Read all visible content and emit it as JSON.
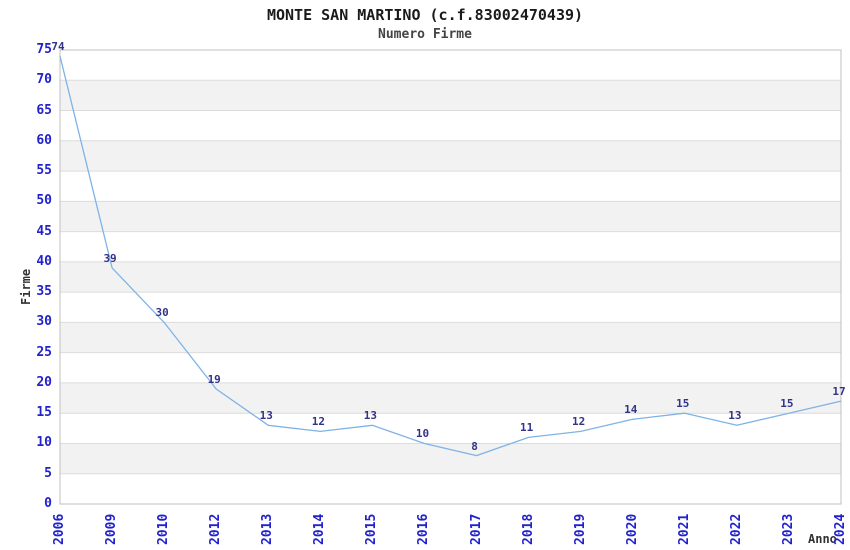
{
  "chart_data": {
    "type": "line",
    "title": "MONTE SAN MARTINO (c.f.83002470439)",
    "subtitle": "Numero Firme",
    "xlabel": "Anno",
    "ylabel": "Firme",
    "categories": [
      "2006",
      "2009",
      "2010",
      "2012",
      "2013",
      "2014",
      "2015",
      "2016",
      "2017",
      "2018",
      "2019",
      "2020",
      "2021",
      "2022",
      "2023",
      "2024"
    ],
    "values": [
      74,
      39,
      30,
      19,
      13,
      12,
      13,
      10,
      8,
      11,
      12,
      14,
      15,
      13,
      15,
      17
    ],
    "ylim": [
      0,
      75
    ],
    "ytick_step": 5,
    "grid": true,
    "background_bands": "alternating white/gray stripes of 5 units",
    "legend": "none",
    "data_labels_shown": true
  },
  "colors": {
    "line": "#7fb3e6",
    "data_label": "#333388",
    "tick_label": "#2222cc",
    "axis_title": "#333333",
    "title": "#1a1a1a",
    "subtitle": "#444444",
    "band_gray": "#f2f2f2",
    "gridline": "#dcdcdc",
    "spine": "#c0c0c0",
    "background": "#ffffff"
  }
}
